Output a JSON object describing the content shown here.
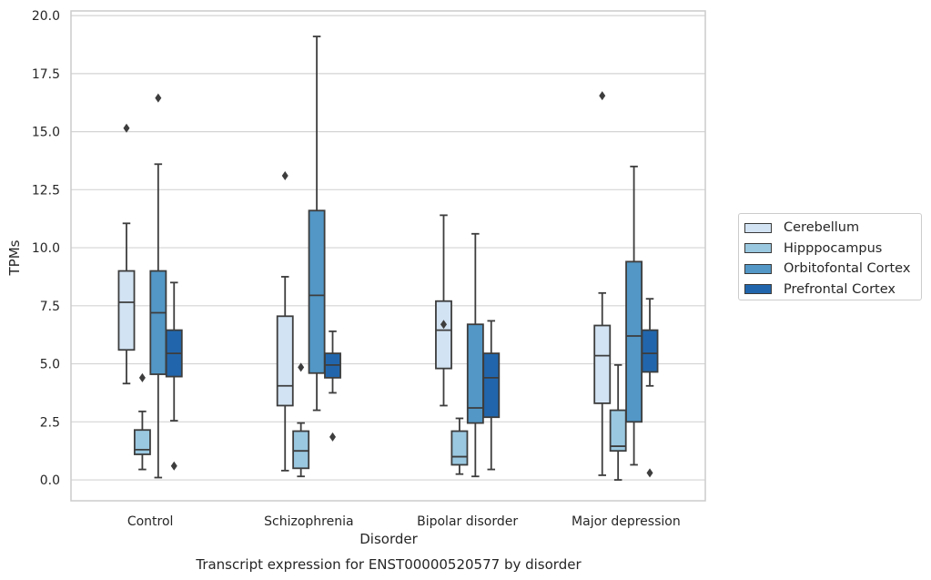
{
  "chart_data": {
    "type": "box",
    "title": "",
    "caption": "Transcript expression for ENST00000520577 by disorder",
    "xlabel": "Disorder",
    "ylabel": "TPMs",
    "ylim": [
      -0.9,
      20.2
    ],
    "yticks": [
      0.0,
      2.5,
      5.0,
      7.5,
      10.0,
      12.5,
      15.0,
      17.5,
      20.0
    ],
    "ytick_labels": [
      "0.0",
      "2.5",
      "5.0",
      "7.5",
      "10.0",
      "12.5",
      "15.0",
      "17.5",
      "20.0"
    ],
    "grid": "horizontal",
    "legend_position": "right",
    "categories": [
      "Control",
      "Schizophrenia",
      "Bipolar disorder",
      "Major depression"
    ],
    "series": [
      {
        "name": "Cerebellum",
        "color": "#d2e3f3",
        "boxes": [
          {
            "whislo": 4.15,
            "q1": 5.6,
            "med": 7.65,
            "q3": 9.0,
            "whishi": 11.05,
            "fliers": [
              15.15
            ]
          },
          {
            "whislo": 0.4,
            "q1": 3.2,
            "med": 4.05,
            "q3": 7.05,
            "whishi": 8.75,
            "fliers": [
              13.1
            ]
          },
          {
            "whislo": 3.2,
            "q1": 4.8,
            "med": 6.45,
            "q3": 7.7,
            "whishi": 11.4,
            "fliers": [
              6.7
            ]
          },
          {
            "whislo": 0.2,
            "q1": 3.3,
            "med": 5.35,
            "q3": 6.65,
            "whishi": 8.05,
            "fliers": [
              16.55
            ]
          }
        ]
      },
      {
        "name": "Hipppocampus",
        "color": "#9ac8e0",
        "boxes": [
          {
            "whislo": 0.45,
            "q1": 1.1,
            "med": 1.3,
            "q3": 2.15,
            "whishi": 2.95,
            "fliers": [
              4.4
            ]
          },
          {
            "whislo": 0.15,
            "q1": 0.5,
            "med": 1.25,
            "q3": 2.1,
            "whishi": 2.45,
            "fliers": [
              4.85
            ]
          },
          {
            "whislo": 0.25,
            "q1": 0.65,
            "med": 1.0,
            "q3": 2.1,
            "whishi": 2.65,
            "fliers": []
          },
          {
            "whislo": 0.0,
            "q1": 1.25,
            "med": 1.45,
            "q3": 3.0,
            "whishi": 4.95,
            "fliers": []
          }
        ]
      },
      {
        "name": "Orbitofontal Cortex",
        "color": "#5297c6",
        "boxes": [
          {
            "whislo": 0.1,
            "q1": 4.55,
            "med": 7.2,
            "q3": 9.0,
            "whishi": 13.6,
            "fliers": [
              16.45
            ]
          },
          {
            "whislo": 3.0,
            "q1": 4.6,
            "med": 7.95,
            "q3": 11.6,
            "whishi": 19.1,
            "fliers": []
          },
          {
            "whislo": 0.15,
            "q1": 2.45,
            "med": 3.1,
            "q3": 6.7,
            "whishi": 10.6,
            "fliers": []
          },
          {
            "whislo": 0.65,
            "q1": 2.5,
            "med": 6.2,
            "q3": 9.4,
            "whishi": 13.5,
            "fliers": []
          }
        ]
      },
      {
        "name": "Prefrontal Cortex",
        "color": "#2166ac",
        "boxes": [
          {
            "whislo": 2.55,
            "q1": 4.45,
            "med": 5.45,
            "q3": 6.45,
            "whishi": 8.5,
            "fliers": [
              0.6
            ]
          },
          {
            "whislo": 3.75,
            "q1": 4.4,
            "med": 4.95,
            "q3": 5.45,
            "whishi": 6.4,
            "fliers": [
              1.85
            ]
          },
          {
            "whislo": 0.45,
            "q1": 2.7,
            "med": 4.4,
            "q3": 5.45,
            "whishi": 6.85,
            "fliers": []
          },
          {
            "whislo": 4.05,
            "q1": 4.65,
            "med": 5.45,
            "q3": 6.45,
            "whishi": 7.8,
            "fliers": [
              0.3
            ]
          }
        ]
      }
    ]
  }
}
